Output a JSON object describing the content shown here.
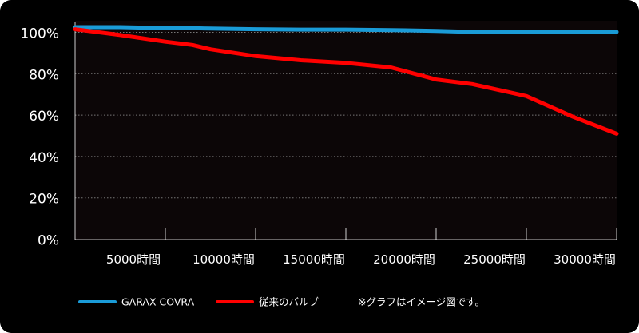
{
  "chart_data": {
    "type": "line",
    "x": [
      0,
      2500,
      5000,
      6500,
      7500,
      10000,
      12500,
      15000,
      17500,
      20000,
      22000,
      25000,
      27500,
      30000
    ],
    "series": [
      {
        "name": "GARAX COVRA",
        "color": "#1a9bd7",
        "values": [
          102.5,
          102.5,
          102,
          102,
          101.8,
          101.5,
          101.3,
          101.3,
          101.1,
          100.7,
          100.2,
          100.2,
          100.2,
          100.2
        ]
      },
      {
        "name": "従来のバルブ",
        "color": "#ff0000",
        "values": [
          101.5,
          98.7,
          95.5,
          93.9,
          91.8,
          88.5,
          86.5,
          85.2,
          83,
          77.2,
          75,
          69.2,
          59.5,
          51
        ]
      }
    ],
    "xlim": [
      0,
      30000
    ],
    "ylim": [
      0,
      100
    ],
    "y_ticks": [
      {
        "value": 100,
        "label": "100%"
      },
      {
        "value": 80,
        "label": "80%"
      },
      {
        "value": 60,
        "label": "60%"
      },
      {
        "value": 40,
        "label": "40%"
      },
      {
        "value": 20,
        "label": "20%"
      },
      {
        "value": 0,
        "label": "0%"
      }
    ],
    "x_ticks": [
      {
        "value": 5000,
        "label": "5000時間"
      },
      {
        "value": 10000,
        "label": "10000時間"
      },
      {
        "value": 15000,
        "label": "15000時間"
      },
      {
        "value": 20000,
        "label": "20000時間"
      },
      {
        "value": 25000,
        "label": "25000時間"
      },
      {
        "value": 30000,
        "label": "30000時間"
      }
    ],
    "grid": "horizontal dotted",
    "legend": "bottom",
    "note": "※グラフはイメージ図です。",
    "colors": {
      "background": "#000000",
      "plot_background": "#0c0607",
      "axis": "#ffffff",
      "grid": "#777777"
    }
  }
}
